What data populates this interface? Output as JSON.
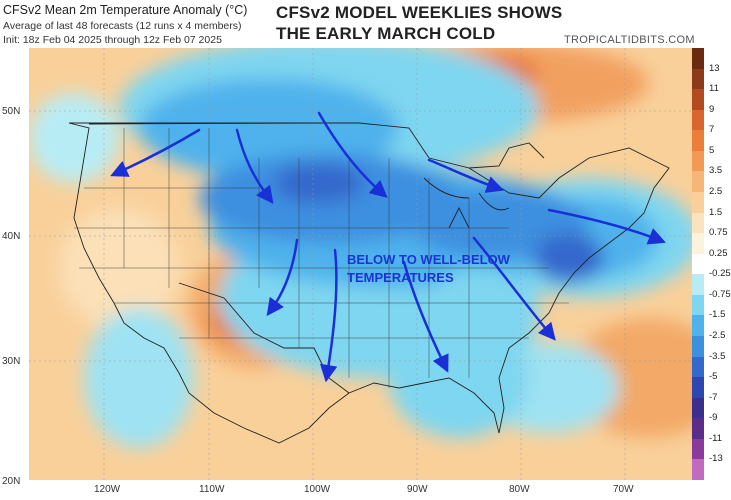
{
  "header": {
    "title": "CFSv2 Mean 2m Temperature Anomaly (°C)",
    "subtitle": "Average of last 48 forecasts (12 runs x 4 members)",
    "init": "Init: 18z Feb 04 2025 through 12z Feb 07 2025",
    "annotation_line1": "CFSv2 MODEL WEEKLIES SHOWS",
    "annotation_line2": "THE EARLY MARCH COLD",
    "brand": "TROPICALTIDBITS.COM"
  },
  "map": {
    "overlay_label_line1": "BELOW TO WELL-BELOW",
    "overlay_label_line2": "TEMPERATURES",
    "lat_labels": [
      "50N",
      "40N",
      "30N",
      "20N"
    ],
    "lon_labels": [
      "120W",
      "110W",
      "100W",
      "90W",
      "80W",
      "70W"
    ],
    "arrow_color": "#1a2fd8"
  },
  "colorbar": {
    "labels": [
      "13",
      "11",
      "9",
      "7",
      "5",
      "3.5",
      "2.5",
      "1.5",
      "0.75",
      "0.25",
      "-0.25",
      "-0.75",
      "-1.5",
      "-2.5",
      "-3.5",
      "-5",
      "-7",
      "-9",
      "-11",
      "-13"
    ],
    "colors": [
      "#6a2a10",
      "#8c3b1a",
      "#b44a20",
      "#d9662e",
      "#ea7f3c",
      "#f29a55",
      "#f6b678",
      "#f9d09a",
      "#fbe4bd",
      "#fdf3dc",
      "#ffffff",
      "#b8ecf5",
      "#7fd6f0",
      "#4fb2ec",
      "#3d8fe0",
      "#3468cc",
      "#2e46b0",
      "#3a2e8e",
      "#5a2d88",
      "#8a3a9c",
      "#c06ac2"
    ]
  }
}
